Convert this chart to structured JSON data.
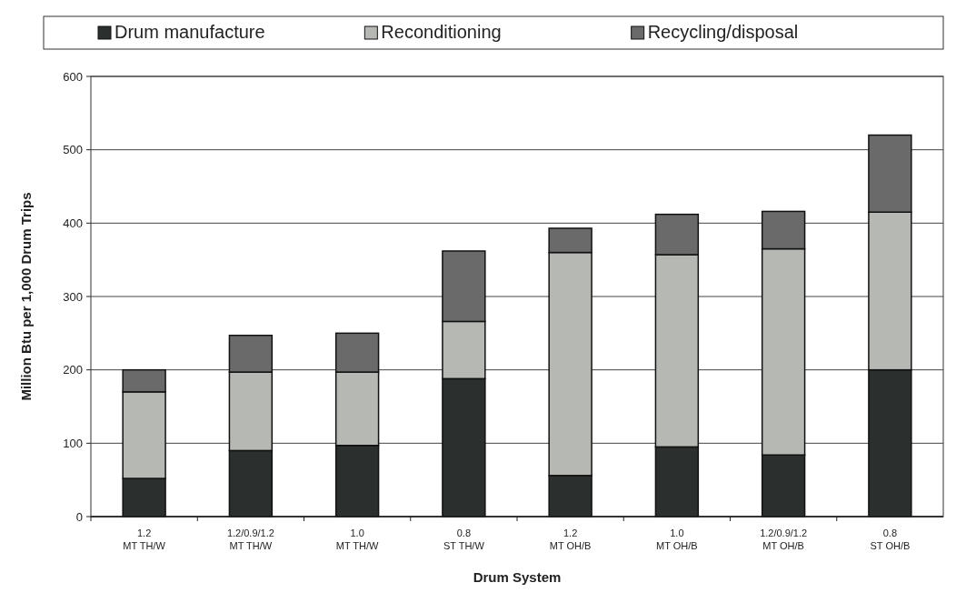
{
  "chart_data": {
    "type": "bar",
    "stacked": true,
    "xlabel": "Drum System",
    "ylabel": "Million Btu per 1,000 Drum Trips",
    "categories": [
      "1.2\nMT TH/W",
      "1.2/0.9/1.2\nMT TH/W",
      "1.0\nMT TH/W",
      "0.8\nST TH/W",
      "1.2\nMT OH/B",
      "1.0\nMT OH/B",
      "1.2/0.9/1.2\nMT OH/B",
      "0.8\nST OH/B"
    ],
    "series": [
      {
        "name": "Drum manufacture",
        "color": "#2b302e",
        "values": [
          52,
          90,
          97,
          188,
          56,
          95,
          84,
          200
        ]
      },
      {
        "name": "Reconditioning",
        "color": "#b5b8b3",
        "values": [
          118,
          107,
          100,
          78,
          304,
          262,
          281,
          215
        ]
      },
      {
        "name": "Recycling/disposal",
        "color": "#6a6a6a",
        "values": [
          30,
          50,
          53,
          96,
          33,
          55,
          51,
          105
        ]
      }
    ],
    "ylim": [
      0,
      600
    ],
    "yticks": [
      0,
      100,
      200,
      300,
      400,
      500,
      600
    ],
    "grid": "y",
    "legend": "top"
  }
}
